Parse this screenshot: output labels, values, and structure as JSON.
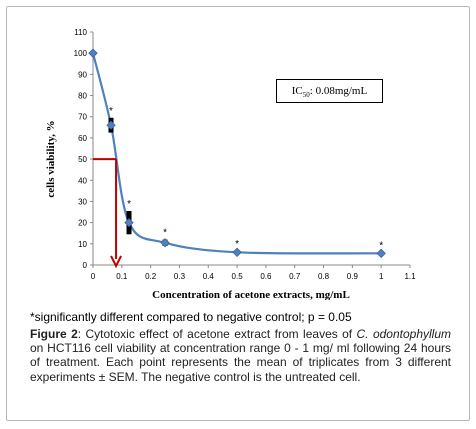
{
  "chart_data": {
    "type": "line",
    "title": "",
    "xlabel": "Concentration of acetone extracts, mg/mL",
    "ylabel": "cells viability, %",
    "xlim": [
      0,
      1.1
    ],
    "ylim": [
      0,
      110
    ],
    "x_ticks": [
      "0",
      "0.1",
      "0.2",
      "0.3",
      "0.4",
      "0.5",
      "0.6",
      "0.7",
      "0.8",
      "0.9",
      "1",
      "1.1"
    ],
    "y_ticks": [
      "0",
      "10",
      "20",
      "30",
      "40",
      "50",
      "60",
      "70",
      "80",
      "90",
      "100",
      "110"
    ],
    "grid": false,
    "line_color": "#4f81bd",
    "marker_color": "#4f81bd",
    "annotation_color": "#c00000",
    "series": [
      {
        "x": [
          0,
          0.0625,
          0.125,
          0.25,
          0.5,
          1
        ],
        "y": [
          100,
          66,
          20,
          10.5,
          6,
          5.5
        ],
        "sem": [
          0,
          3.5,
          5.5,
          1.5,
          0.5,
          0.5
        ],
        "significant": [
          false,
          true,
          true,
          true,
          true,
          true
        ]
      }
    ],
    "significance_marker": "*",
    "ic50_line": {
      "x": 0.08,
      "y": 50
    },
    "ic50_label_prefix": "IC",
    "ic50_label_sub": "50",
    "ic50_label_value": ": 0.08mg/mL"
  },
  "footnote": "*significantly different compared to negative control; p = 0.05",
  "caption": {
    "label": "Figure 2",
    "text_before": ": Cytotoxic effect of acetone extract from leaves of ",
    "species": "C. odontophyllum",
    "text_after": " on HCT116 cell viability at concentration range 0 - 1 mg/ ml following 24 hours of treatment. Each point represents the mean of triplicates from 3 different experiments ± SEM. The negative control is the untreated cell."
  }
}
